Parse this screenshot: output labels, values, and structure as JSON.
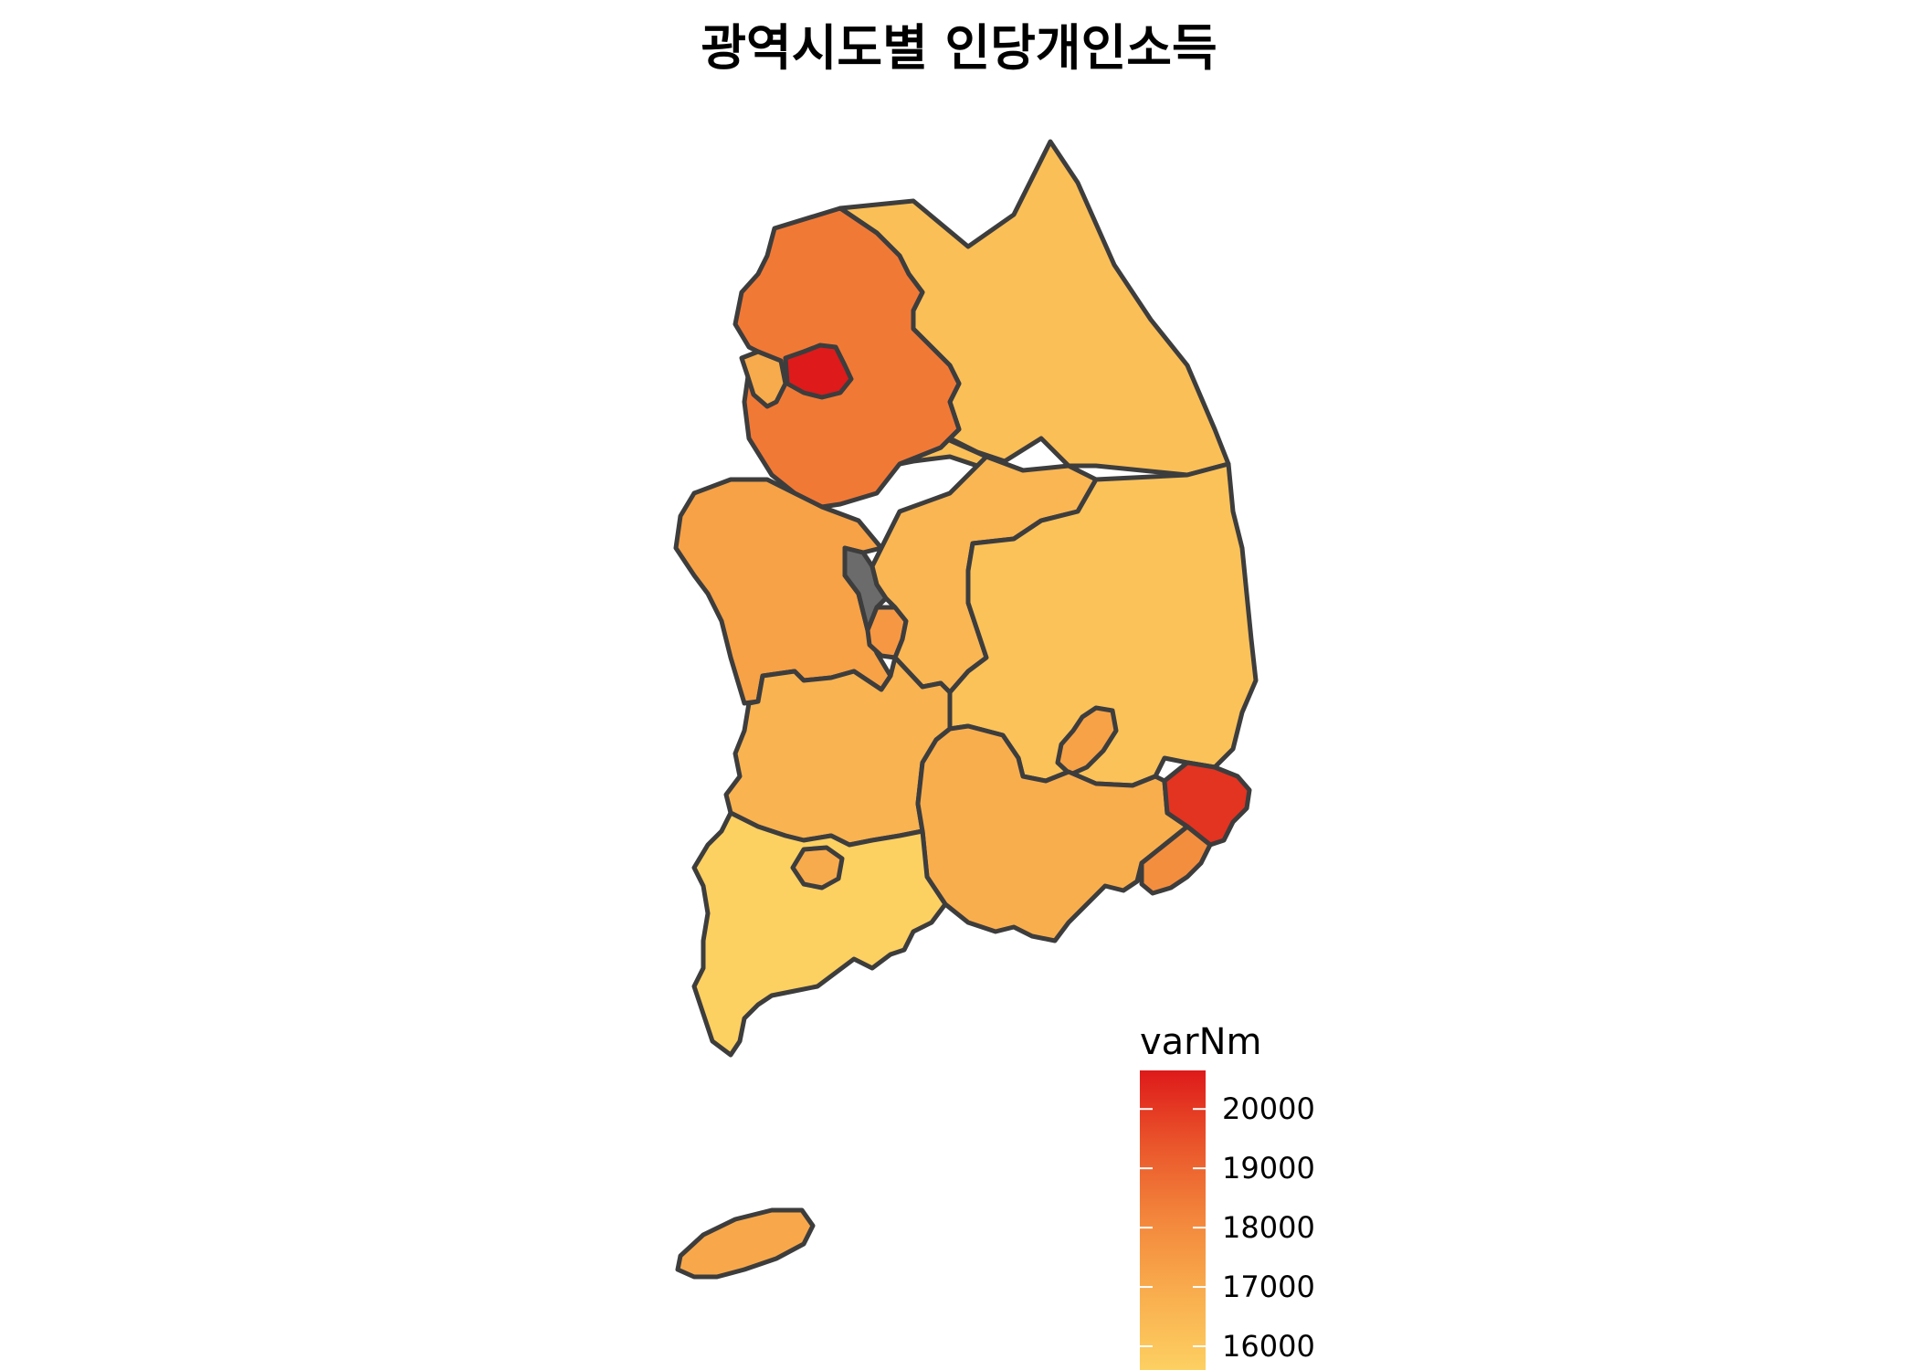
{
  "title": "광역시도별 인당개인소득",
  "legend": {
    "title": "varNm",
    "ticks": [
      20000,
      19000,
      18000,
      17000,
      16000
    ],
    "range": [
      15700,
      20500
    ],
    "low_color": "#FDD062",
    "high_color": "#DE1A1A"
  },
  "chart_data": {
    "type": "choropleth",
    "regions": [
      {
        "id": "gangwon",
        "value": 16300
      },
      {
        "id": "gyeonggi",
        "value": 18500
      },
      {
        "id": "seoul",
        "value": 20500
      },
      {
        "id": "incheon",
        "value": 17000
      },
      {
        "id": "chungnam",
        "value": 17300
      },
      {
        "id": "sejong",
        "value": null
      },
      {
        "id": "daejeon",
        "value": 17600
      },
      {
        "id": "chungbuk",
        "value": 16600
      },
      {
        "id": "gyeongbuk",
        "value": 16200
      },
      {
        "id": "daegu",
        "value": 17300
      },
      {
        "id": "jeonbuk",
        "value": 16700
      },
      {
        "id": "gwangju",
        "value": 17000
      },
      {
        "id": "jeonnam",
        "value": 15700
      },
      {
        "id": "gyeongnam",
        "value": 16900
      },
      {
        "id": "ulsan",
        "value": 20000
      },
      {
        "id": "busan",
        "value": 17900
      },
      {
        "id": "jeju",
        "value": 17100
      }
    ],
    "missing_color": "#6b6b6b"
  }
}
